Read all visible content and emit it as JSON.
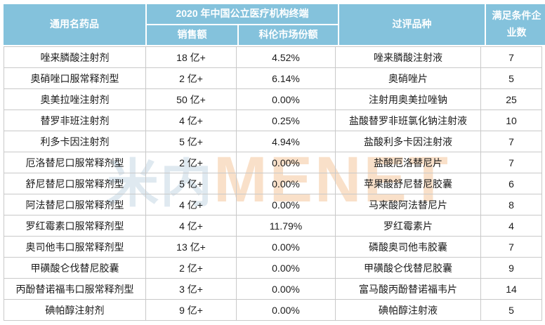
{
  "chart_data": {
    "type": "table",
    "header": {
      "generic": "通用名药品",
      "group_2020": "2020 年中国公立医疗机构终端",
      "sales": "销售额",
      "kelun_share": "科伦市场份额",
      "approved_variety": "过评品种",
      "qualified_companies": "满足条件企业数"
    },
    "column_keys": [
      "generic_name",
      "sales",
      "kelun_share",
      "approved_variety",
      "qualified_companies"
    ],
    "rows": [
      [
        "唑来膦酸注射剂",
        "18 亿+",
        "4.52%",
        "唑来膦酸注射液",
        "7"
      ],
      [
        "奥硝唑口服常释剂型",
        "2 亿+",
        "6.14%",
        "奥硝唑片",
        "5"
      ],
      [
        "奥美拉唑注射剂",
        "50 亿+",
        "0.00%",
        "注射用奥美拉唑钠",
        "25"
      ],
      [
        "替罗非班注射剂",
        "4 亿+",
        "0.25%",
        "盐酸替罗非班氯化钠注射液",
        "10"
      ],
      [
        "利多卡因注射剂",
        "5 亿+",
        "4.94%",
        "盐酸利多卡因注射液",
        "7"
      ],
      [
        "厄洛替尼口服常释剂型",
        "2 亿+",
        "0.00%",
        "盐酸厄洛替尼片",
        "7"
      ],
      [
        "舒尼替尼口服常释剂型",
        "5 亿+",
        "0.00%",
        "苹果酸舒尼替尼胶囊",
        "6"
      ],
      [
        "阿法替尼口服常释剂型",
        "4 亿+",
        "0.00%",
        "马来酸阿法替尼片",
        "8"
      ],
      [
        "罗红霉素口服常释剂型",
        "4 亿+",
        "11.79%",
        "罗红霉素片",
        "4"
      ],
      [
        "奥司他韦口服常释剂型",
        "13 亿+",
        "0.00%",
        "磷酸奥司他韦胶囊",
        "7"
      ],
      [
        "甲磺酸仑伐替尼胶囊",
        "2 亿+",
        "0.00%",
        "甲磺酸仑伐替尼胶囊",
        "9"
      ],
      [
        "丙酚替诺福韦口服常释剂型",
        "3 亿+",
        "0.00%",
        "富马酸丙酚替诺福韦片",
        "14"
      ],
      [
        "碘帕醇注射剂",
        "9 亿+",
        "0.00%",
        "碘帕醇注射液",
        "5"
      ]
    ]
  },
  "watermark": {
    "cn": "米内",
    "en": "MENET"
  },
  "colors": {
    "header_bg": "#84C2DC",
    "header_text": "#FFFFFF",
    "body_text": "#1B1B1B",
    "border": "#C9C9C9",
    "watermark_cn": "#DFE9F0",
    "watermark_en": "#F9E0C9",
    "page_bg": "#FFFFFF"
  }
}
